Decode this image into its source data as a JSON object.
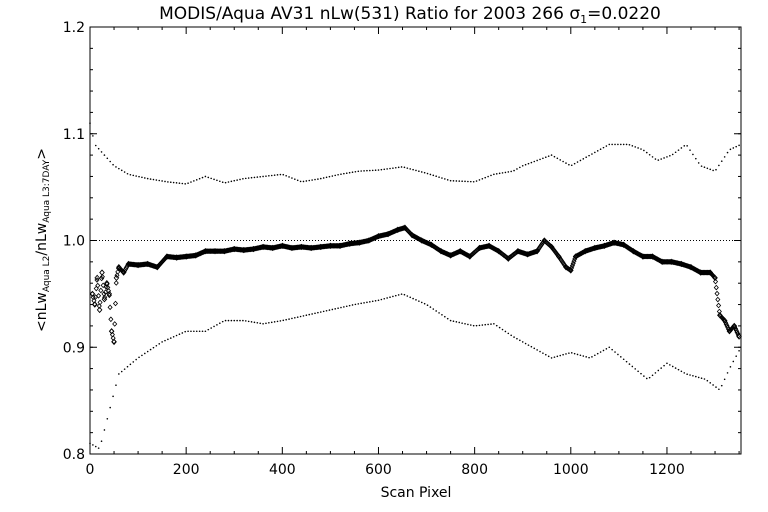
{
  "chart_data": {
    "type": "scatter",
    "title": "MODIS/Aqua AV31 nLw(531) Ratio for 2003 266 σ1=0.0220",
    "title_parts": {
      "main": "MODIS/Aqua AV31 nLw(531) Ratio for 2003 266 ",
      "sigma_symbol": "σ",
      "sigma_sub": "1",
      "sigma_value": "=0.0220"
    },
    "xlabel": "Scan Pixel",
    "ylabel_parts": {
      "open": "<nLw",
      "sub1": "Aqua L2",
      "mid": "/nLw",
      "sub2": "Aqua L3:7DAY",
      "close": ">"
    },
    "xlim": [
      0,
      1354
    ],
    "ylim": [
      0.8,
      1.2
    ],
    "xticks": [
      0,
      200,
      400,
      600,
      800,
      1000,
      1200
    ],
    "xtick_labels": [
      "0",
      "200",
      "400",
      "600",
      "800",
      "1000",
      "1200"
    ],
    "yticks": [
      0.8,
      0.9,
      1.0,
      1.1,
      1.2
    ],
    "ytick_labels": [
      "0.8",
      "0.9",
      "1.0",
      "1.1",
      "1.2"
    ],
    "reference_line": 1.0,
    "grid": false,
    "legend": "none",
    "series": [
      {
        "style": "diamond-markers",
        "points": [
          [
            5,
            0.95
          ],
          [
            10,
            0.94
          ],
          [
            15,
            0.965
          ],
          [
            20,
            0.935
          ],
          [
            25,
            0.97
          ],
          [
            30,
            0.945
          ],
          [
            35,
            0.96
          ],
          [
            40,
            0.95
          ],
          [
            45,
            0.915
          ],
          [
            50,
            0.905
          ],
          [
            55,
            0.965
          ],
          [
            60,
            0.975
          ],
          [
            70,
            0.97
          ],
          [
            80,
            0.978
          ],
          [
            100,
            0.977
          ],
          [
            120,
            0.978
          ],
          [
            140,
            0.975
          ],
          [
            160,
            0.985
          ],
          [
            180,
            0.984
          ],
          [
            200,
            0.985
          ],
          [
            220,
            0.986
          ],
          [
            240,
            0.99
          ],
          [
            260,
            0.99
          ],
          [
            280,
            0.99
          ],
          [
            300,
            0.992
          ],
          [
            320,
            0.991
          ],
          [
            340,
            0.992
          ],
          [
            360,
            0.994
          ],
          [
            380,
            0.993
          ],
          [
            400,
            0.995
          ],
          [
            420,
            0.993
          ],
          [
            440,
            0.994
          ],
          [
            460,
            0.993
          ],
          [
            480,
            0.994
          ],
          [
            500,
            0.995
          ],
          [
            520,
            0.995
          ],
          [
            540,
            0.997
          ],
          [
            560,
            0.998
          ],
          [
            580,
            1.0
          ],
          [
            600,
            1.004
          ],
          [
            620,
            1.006
          ],
          [
            640,
            1.01
          ],
          [
            655,
            1.012
          ],
          [
            670,
            1.005
          ],
          [
            690,
            1.0
          ],
          [
            710,
            0.996
          ],
          [
            730,
            0.99
          ],
          [
            750,
            0.986
          ],
          [
            770,
            0.99
          ],
          [
            790,
            0.985
          ],
          [
            810,
            0.993
          ],
          [
            830,
            0.995
          ],
          [
            850,
            0.99
          ],
          [
            870,
            0.983
          ],
          [
            890,
            0.99
          ],
          [
            910,
            0.987
          ],
          [
            930,
            0.99
          ],
          [
            945,
            1.0
          ],
          [
            960,
            0.994
          ],
          [
            975,
            0.985
          ],
          [
            990,
            0.975
          ],
          [
            1000,
            0.972
          ],
          [
            1010,
            0.985
          ],
          [
            1030,
            0.99
          ],
          [
            1050,
            0.993
          ],
          [
            1070,
            0.995
          ],
          [
            1090,
            0.998
          ],
          [
            1110,
            0.996
          ],
          [
            1130,
            0.99
          ],
          [
            1150,
            0.985
          ],
          [
            1170,
            0.985
          ],
          [
            1190,
            0.98
          ],
          [
            1210,
            0.98
          ],
          [
            1230,
            0.978
          ],
          [
            1250,
            0.975
          ],
          [
            1270,
            0.97
          ],
          [
            1290,
            0.97
          ],
          [
            1300,
            0.965
          ],
          [
            1310,
            0.93
          ],
          [
            1320,
            0.925
          ],
          [
            1330,
            0.915
          ],
          [
            1340,
            0.92
          ],
          [
            1350,
            0.91
          ]
        ]
      },
      {
        "style": "upper-dotted",
        "points": [
          [
            0,
            1.11
          ],
          [
            10,
            1.09
          ],
          [
            30,
            1.08
          ],
          [
            50,
            1.07
          ],
          [
            80,
            1.062
          ],
          [
            120,
            1.058
          ],
          [
            160,
            1.055
          ],
          [
            200,
            1.053
          ],
          [
            240,
            1.06
          ],
          [
            280,
            1.054
          ],
          [
            320,
            1.058
          ],
          [
            360,
            1.06
          ],
          [
            400,
            1.062
          ],
          [
            440,
            1.055
          ],
          [
            480,
            1.058
          ],
          [
            520,
            1.062
          ],
          [
            560,
            1.065
          ],
          [
            600,
            1.066
          ],
          [
            650,
            1.069
          ],
          [
            700,
            1.063
          ],
          [
            750,
            1.056
          ],
          [
            800,
            1.055
          ],
          [
            840,
            1.062
          ],
          [
            880,
            1.065
          ],
          [
            900,
            1.07
          ],
          [
            930,
            1.075
          ],
          [
            960,
            1.08
          ],
          [
            1000,
            1.07
          ],
          [
            1040,
            1.08
          ],
          [
            1080,
            1.09
          ],
          [
            1120,
            1.09
          ],
          [
            1150,
            1.085
          ],
          [
            1180,
            1.075
          ],
          [
            1210,
            1.08
          ],
          [
            1240,
            1.09
          ],
          [
            1270,
            1.07
          ],
          [
            1300,
            1.065
          ],
          [
            1330,
            1.085
          ],
          [
            1354,
            1.09
          ]
        ]
      },
      {
        "style": "lower-dotted",
        "points": [
          [
            0,
            0.81
          ],
          [
            20,
            0.805
          ],
          [
            40,
            0.84
          ],
          [
            60,
            0.875
          ],
          [
            100,
            0.89
          ],
          [
            150,
            0.905
          ],
          [
            200,
            0.915
          ],
          [
            240,
            0.915
          ],
          [
            280,
            0.925
          ],
          [
            320,
            0.925
          ],
          [
            360,
            0.922
          ],
          [
            400,
            0.925
          ],
          [
            450,
            0.93
          ],
          [
            500,
            0.935
          ],
          [
            550,
            0.94
          ],
          [
            600,
            0.944
          ],
          [
            650,
            0.95
          ],
          [
            700,
            0.94
          ],
          [
            750,
            0.925
          ],
          [
            800,
            0.92
          ],
          [
            840,
            0.922
          ],
          [
            880,
            0.91
          ],
          [
            920,
            0.9
          ],
          [
            960,
            0.89
          ],
          [
            1000,
            0.895
          ],
          [
            1040,
            0.89
          ],
          [
            1080,
            0.9
          ],
          [
            1120,
            0.885
          ],
          [
            1160,
            0.87
          ],
          [
            1200,
            0.885
          ],
          [
            1240,
            0.875
          ],
          [
            1280,
            0.87
          ],
          [
            1310,
            0.86
          ],
          [
            1330,
            0.88
          ],
          [
            1354,
            0.9
          ]
        ]
      }
    ]
  }
}
